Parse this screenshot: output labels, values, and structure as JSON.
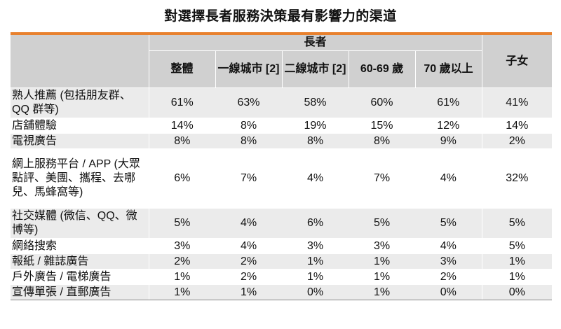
{
  "title": "對選擇長者服務決策最有影響力的渠道",
  "header": {
    "group_label": "長者",
    "columns": [
      "整體",
      "一線城市 [2]",
      "二線城市 [2]",
      "60-69 歲",
      "70 歲以上"
    ],
    "last_column": "子女"
  },
  "rows": [
    {
      "label": "熟人推薦 (包括朋友群、QQ 群等)",
      "values": [
        "61%",
        "63%",
        "58%",
        "60%",
        "61%",
        "41%"
      ]
    },
    {
      "label": "店舖體驗",
      "values": [
        "14%",
        "8%",
        "19%",
        "15%",
        "12%",
        "14%"
      ]
    },
    {
      "label": "電視廣告",
      "values": [
        "8%",
        "8%",
        "8%",
        "8%",
        "9%",
        "2%"
      ]
    },
    {
      "label": "網上服務平台 / APP (大眾點評、美團、攜程、去哪兒、馬蜂窩等)",
      "values": [
        "6%",
        "7%",
        "4%",
        "7%",
        "4%",
        "32%"
      ]
    },
    {
      "label": "社交媒體 (微信、QQ、微博等)",
      "values": [
        "5%",
        "4%",
        "6%",
        "5%",
        "5%",
        "5%"
      ]
    },
    {
      "label": "網絡搜索",
      "values": [
        "3%",
        "4%",
        "3%",
        "3%",
        "4%",
        "5%"
      ]
    },
    {
      "label": "報紙 / 雜誌廣告",
      "values": [
        "2%",
        "2%",
        "1%",
        "1%",
        "3%",
        "1%"
      ]
    },
    {
      "label": "戶外廣告 / 電梯廣告",
      "values": [
        "1%",
        "2%",
        "1%",
        "1%",
        "2%",
        "1%"
      ]
    },
    {
      "label": "宣傳單張 / 直郵廣告",
      "values": [
        "1%",
        "1%",
        "0%",
        "1%",
        "0%",
        "0%"
      ]
    }
  ]
}
